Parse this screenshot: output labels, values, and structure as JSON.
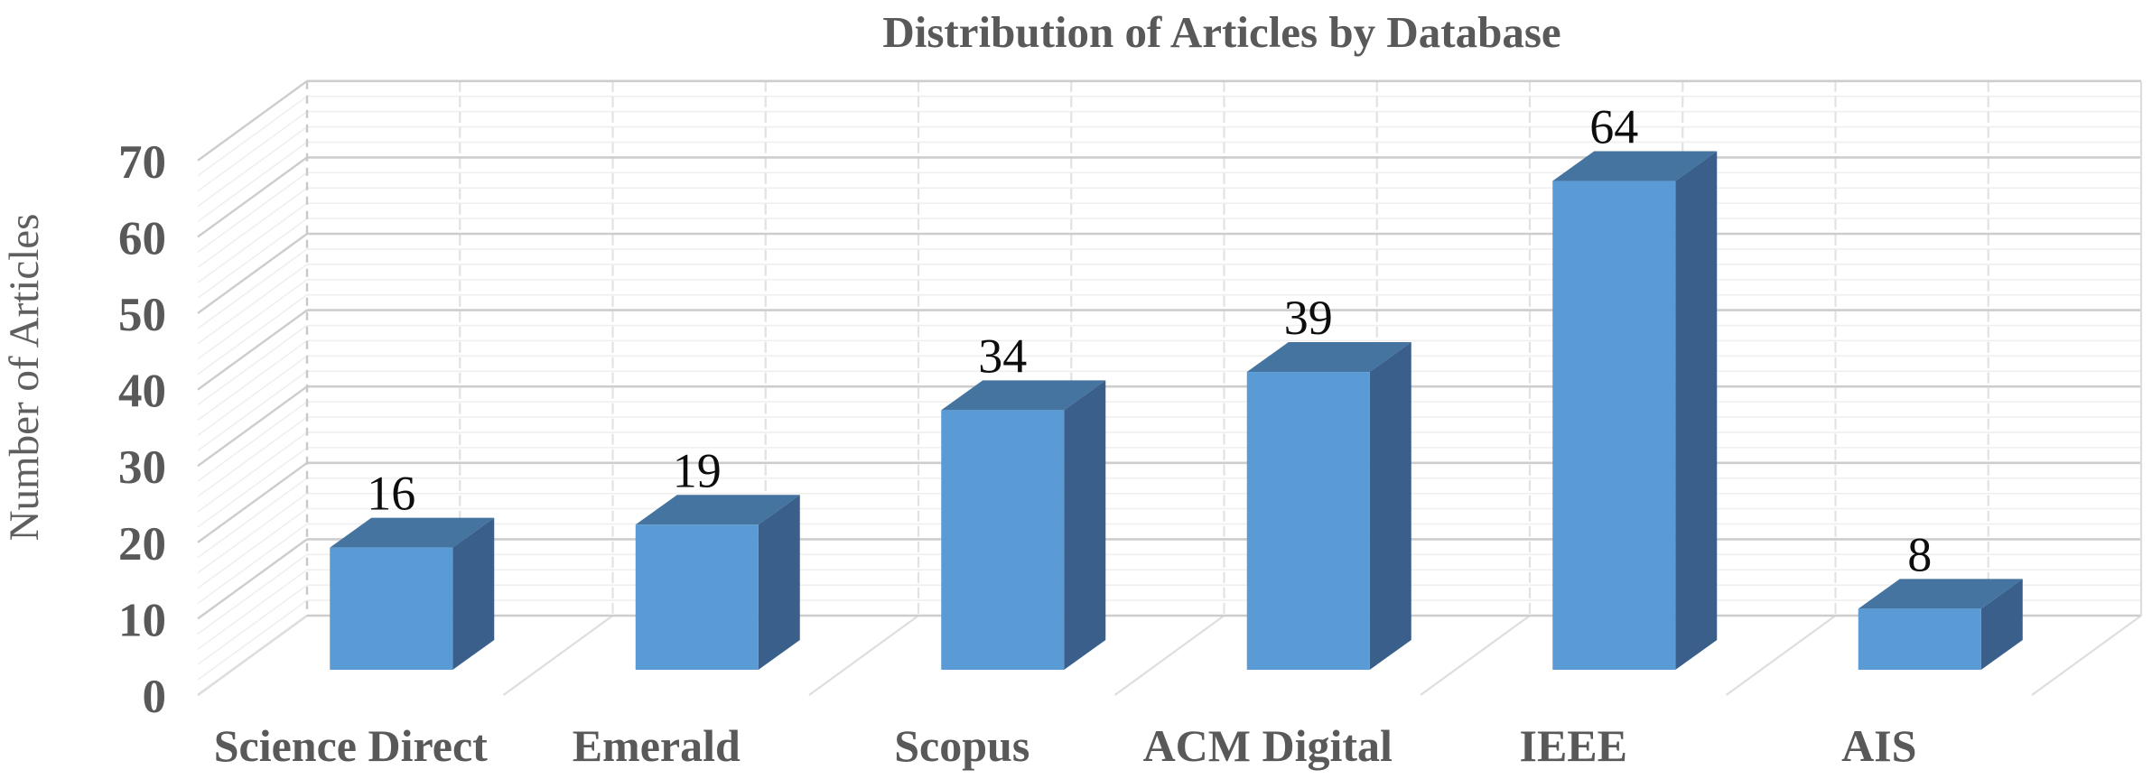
{
  "chart_data": {
    "type": "bar",
    "variant": "3d-column",
    "title": "Distribution of Articles by Database",
    "ylabel": "Number of Articles",
    "xlabel": "",
    "categories": [
      "Science Direct",
      "Emerald",
      "Scopus",
      "ACM Digital",
      "IEEE",
      "AIS"
    ],
    "values": [
      16,
      19,
      34,
      39,
      64,
      8
    ],
    "data_labels": [
      "16",
      "19",
      "34",
      "39",
      "64",
      "8"
    ],
    "y_ticks": [
      0,
      10,
      20,
      30,
      40,
      50,
      60,
      70
    ],
    "ylim": [
      0,
      70
    ],
    "major_unit": 10,
    "minor_unit": 2,
    "grid": true,
    "legend": "none",
    "colors": {
      "bar_front": "#5b9bd5",
      "bar_top": "#44749f",
      "bar_side": "#395f8a",
      "axis_text": "#595959",
      "ytitle_text": "#5f5f5f",
      "title_text": "#595959",
      "data_label": "#0d0d0d",
      "grid_major": "#cdcdcd",
      "grid_minor": "#efefef",
      "wall_vertical": "#e2e2e2",
      "wall_edge_dashed": "#c9c9c9",
      "wall_right_edge": "#dcdcdc",
      "floor_line": "#dedede",
      "background": "#ffffff"
    }
  }
}
